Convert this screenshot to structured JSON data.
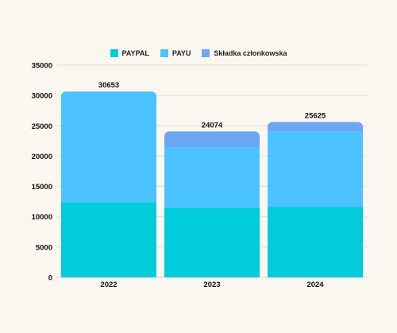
{
  "chart_data": {
    "type": "bar",
    "stacked": true,
    "categories": [
      "2022",
      "2023",
      "2024"
    ],
    "series": [
      {
        "name": "PAYPAL",
        "color": "#00cdd9",
        "values": [
          12400,
          11500,
          11600
        ]
      },
      {
        "name": "PAYU",
        "color": "#4cc3ff",
        "values": [
          18253,
          10000,
          12500
        ]
      },
      {
        "name": "Składka członkowska",
        "color": "#6ba7f5",
        "values": [
          0,
          2574,
          1525
        ]
      }
    ],
    "totals": [
      "30653",
      "24074",
      "25625"
    ],
    "y_ticks": [
      "0",
      "5000",
      "10000",
      "15000",
      "20000",
      "25000",
      "30000",
      "35000"
    ],
    "ylim": [
      0,
      35000
    ],
    "grid": true,
    "legend_position": "top-center"
  }
}
